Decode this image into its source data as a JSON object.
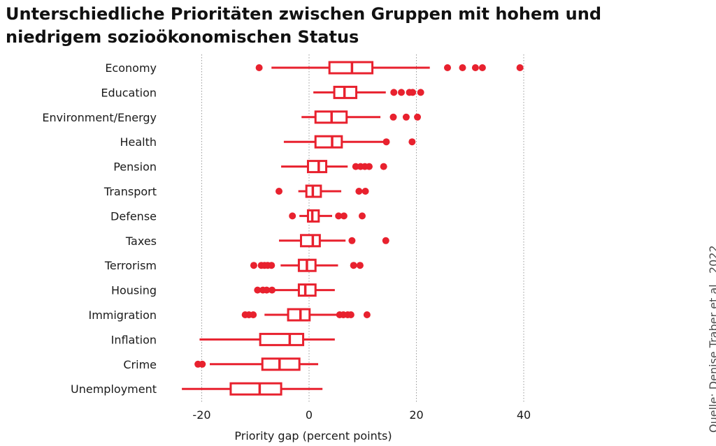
{
  "title": "Unterschiedliche Prioritäten zwischen Gruppen mit hohem und niedrigem sozioökonomischen Status",
  "source": "Quelle: Denise Traber et al., 2022",
  "colors": {
    "accent": "#e8212e",
    "grid": "#9a9a9a",
    "text": "#1a1a1a"
  },
  "chart_data": {
    "type": "boxplot",
    "xlabel": "Priority gap (percent points)",
    "ylabel": "",
    "xlim": [
      -30,
      45
    ],
    "xticks": [
      -20,
      0,
      20,
      40
    ],
    "xtick_labels": [
      "-20",
      "0",
      "20",
      "40"
    ],
    "grid": "vertical dotted at x ticks",
    "categories": [
      "Economy",
      "Education",
      "Environment/Energy",
      "Health",
      "Pension",
      "Transport",
      "Defense",
      "Taxes",
      "Terrorism",
      "Housing",
      "Immigration",
      "Inflation",
      "Crime",
      "Unemployment"
    ],
    "boxes": [
      {
        "label": "Economy",
        "whisker_low": -7,
        "q1": 3.8,
        "median": 8,
        "q3": 11.8,
        "whisker_high": 22.5,
        "outliers": [
          -9.3,
          25.8,
          28.6,
          31,
          32.3,
          39.3
        ]
      },
      {
        "label": "Education",
        "whisker_low": 0.8,
        "q1": 4.7,
        "median": 6.6,
        "q3": 8.8,
        "whisker_high": 14.3,
        "outliers": [
          15.8,
          17.2,
          18.7,
          19.3,
          20.8
        ]
      },
      {
        "label": "Environment/Energy",
        "whisker_low": -1.4,
        "q1": 1.2,
        "median": 4.2,
        "q3": 7,
        "whisker_high": 13.3,
        "outliers": [
          15.7,
          18.1,
          20.2
        ]
      },
      {
        "label": "Health",
        "whisker_low": -4.7,
        "q1": 1.2,
        "median": 4.3,
        "q3": 6.1,
        "whisker_high": 14.4,
        "outliers": [
          14.4,
          19.2
        ]
      },
      {
        "label": "Pension",
        "whisker_low": -5.2,
        "q1": -0.2,
        "median": 1.8,
        "q3": 3.2,
        "whisker_high": 7.2,
        "outliers": [
          8.7,
          9.6,
          10.4,
          11.2,
          13.9
        ]
      },
      {
        "label": "Transport",
        "whisker_low": -2,
        "q1": -0.5,
        "median": 0.7,
        "q3": 2.2,
        "whisker_high": 6,
        "outliers": [
          -5.6,
          9.3,
          10.5
        ]
      },
      {
        "label": "Defense",
        "whisker_low": -1.8,
        "q1": -0.2,
        "median": 0.6,
        "q3": 1.8,
        "whisker_high": 4.3,
        "outliers": [
          -3.1,
          5.5,
          6.5,
          9.9
        ]
      },
      {
        "label": "Taxes",
        "whisker_low": -5.6,
        "q1": -1.5,
        "median": 0.7,
        "q3": 2,
        "whisker_high": 6.8,
        "outliers": [
          8,
          14.3
        ]
      },
      {
        "label": "Terrorism",
        "whisker_low": -5.3,
        "q1": -1.9,
        "median": -0.4,
        "q3": 1.2,
        "whisker_high": 5.4,
        "outliers": [
          -10.3,
          -8.9,
          -8.3,
          -7.7,
          -7,
          8.3,
          9.5
        ]
      },
      {
        "label": "Housing",
        "whisker_low": -6.5,
        "q1": -1.9,
        "median": -0.7,
        "q3": 1.2,
        "whisker_high": 4.8,
        "outliers": [
          -9.6,
          -8.6,
          -7.9,
          -6.9
        ]
      },
      {
        "label": "Immigration",
        "whisker_low": -8.3,
        "q1": -3.9,
        "median": -1.6,
        "q3": 0.1,
        "whisker_high": 5.5,
        "outliers": [
          -11.9,
          -11.2,
          -10.4,
          5.7,
          6.4,
          7.2,
          7.8,
          10.8
        ]
      },
      {
        "label": "Inflation",
        "whisker_low": -20.4,
        "q1": -9.1,
        "median": -3.6,
        "q3": -1.1,
        "whisker_high": 4.8,
        "outliers": []
      },
      {
        "label": "Crime",
        "whisker_low": -18.5,
        "q1": -8.7,
        "median": -5.5,
        "q3": -1.8,
        "whisker_high": 1.7,
        "outliers": [
          -20.7,
          -19.9
        ]
      },
      {
        "label": "Unemployment",
        "whisker_low": -23.7,
        "q1": -14.6,
        "median": -9.2,
        "q3": -5.2,
        "whisker_high": 2.5,
        "outliers": []
      }
    ]
  }
}
